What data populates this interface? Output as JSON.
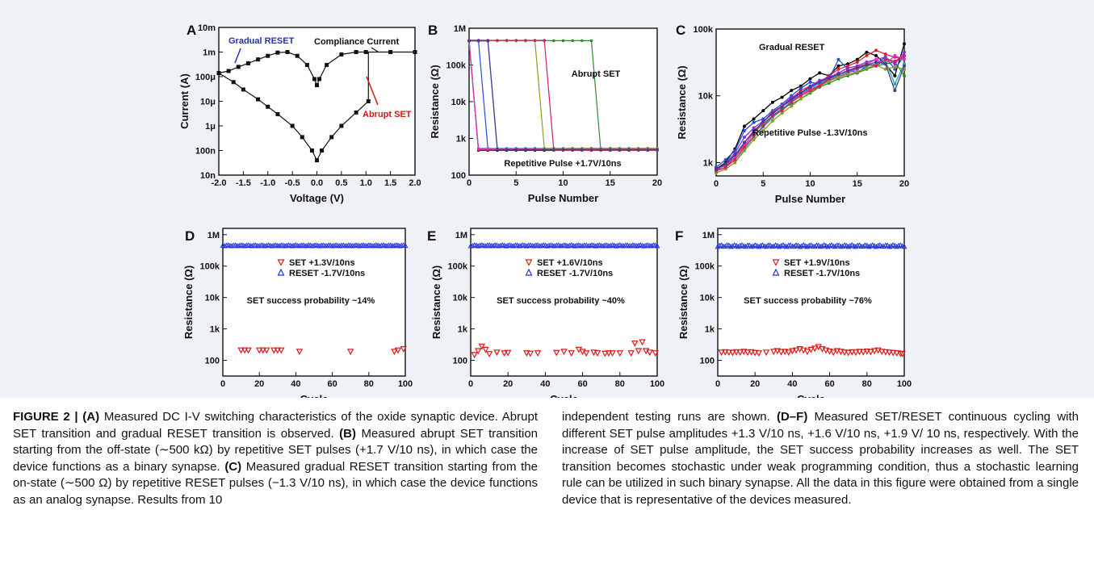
{
  "panels": [
    {
      "letter": "A",
      "type": "scatter",
      "xlabel": "Voltage (V)",
      "ylabel": "Current (A)",
      "xlim": [
        -2.0,
        2.0
      ],
      "xticks": [
        "-2.0",
        "-1.5",
        "-1.0",
        "-0.5",
        "0.0",
        "0.5",
        "1.0",
        "1.5",
        "2.0"
      ],
      "ylog": true,
      "ylim_exp": [
        -8,
        -2
      ],
      "yticks": [
        "10n",
        "100n",
        "1μ",
        "10μ",
        "100μ",
        "1m",
        "10m"
      ],
      "annotations": {
        "gradual": "Gradual RESET",
        "compliance": "Compliance Current",
        "abrupt": "Abrupt SET"
      },
      "curves": {
        "upper": [
          [
            -2.0,
            0.00014
          ],
          [
            -1.8,
            0.00017
          ],
          [
            -1.6,
            0.00025
          ],
          [
            -1.4,
            0.00035
          ],
          [
            -1.2,
            0.0005
          ],
          [
            -1.0,
            0.0007
          ],
          [
            -0.8,
            0.00095
          ],
          [
            -0.6,
            0.001
          ],
          [
            -0.4,
            0.0007
          ],
          [
            -0.2,
            0.0003
          ],
          [
            -0.05,
            8e-05
          ],
          [
            0.0,
            4.5e-05
          ],
          [
            0.05,
            8e-05
          ],
          [
            0.2,
            0.0003
          ],
          [
            0.5,
            0.0008
          ],
          [
            0.8,
            0.001
          ],
          [
            1.0,
            0.001
          ],
          [
            1.5,
            0.001
          ],
          [
            2.0,
            0.001
          ]
        ],
        "lower": [
          [
            -2.0,
            0.00014
          ],
          [
            -1.7,
            6e-05
          ],
          [
            -1.5,
            3e-05
          ],
          [
            -1.2,
            1.2e-05
          ],
          [
            -1.0,
            6e-06
          ],
          [
            -0.8,
            3e-06
          ],
          [
            -0.5,
            1e-06
          ],
          [
            -0.3,
            3.5e-07
          ],
          [
            -0.1,
            1e-07
          ],
          [
            0.0,
            4e-08
          ],
          [
            0.1,
            1e-07
          ],
          [
            0.3,
            3.5e-07
          ],
          [
            0.5,
            1e-06
          ],
          [
            0.8,
            3.5e-06
          ],
          [
            1.05,
            1e-05
          ]
        ]
      }
    },
    {
      "letter": "B",
      "type": "line",
      "xlabel": "Pulse Number",
      "ylabel": "Resistance (Ω)",
      "xlim": [
        0,
        20
      ],
      "xticks": [
        "0",
        "5",
        "10",
        "15",
        "20"
      ],
      "ylog": true,
      "ylim_exp": [
        2,
        6
      ],
      "yticks": [
        "100",
        "1k",
        "10k",
        "100k",
        "1M"
      ],
      "annotations": {
        "top": "Abrupt SET",
        "bottom": "Repetitive Pulse +1.7V/10ns"
      },
      "high": 450000,
      "low": 500,
      "series": [
        {
          "color": "#000000",
          "switch": 1
        },
        {
          "color": "#e8192c",
          "switch": 1
        },
        {
          "color": "#1f4fd8",
          "switch": 2
        },
        {
          "color": "#18b4b4",
          "switch": 1
        },
        {
          "color": "#2e8b2e",
          "switch": 14
        },
        {
          "color": "#8a2be2",
          "switch": 3
        },
        {
          "color": "#e030c8",
          "switch": 1
        },
        {
          "color": "#8e9b1a",
          "switch": 8
        },
        {
          "color": "#d02060",
          "switch": 9
        },
        {
          "color": "#404090",
          "switch": 3
        }
      ]
    },
    {
      "letter": "C",
      "type": "line",
      "xlabel": "Pulse Number",
      "ylabel": "Resistance (Ω)",
      "xlim": [
        0,
        20
      ],
      "xticks": [
        "0",
        "5",
        "10",
        "15",
        "20"
      ],
      "ylog": true,
      "ylim_exp": [
        2.8,
        5
      ],
      "yticks": [
        "1k",
        "10k",
        "100k"
      ],
      "annotations": {
        "top": "Gradual RESET",
        "bottom": "Repetitive Pulse -1.3V/10ns"
      },
      "series": [
        {
          "color": "#000000",
          "values": [
            800,
            1000,
            1600,
            3500,
            4500,
            6000,
            8000,
            9500,
            12000,
            14000,
            18000,
            22000,
            20000,
            28000,
            30000,
            35000,
            45000,
            40000,
            30000,
            20000,
            60000
          ]
        },
        {
          "color": "#e8192c",
          "values": [
            750,
            850,
            1200,
            2000,
            3000,
            4000,
            5500,
            7000,
            9000,
            12000,
            14000,
            16000,
            20000,
            25000,
            28000,
            32000,
            40000,
            48000,
            42000,
            38000,
            35000
          ]
        },
        {
          "color": "#1f4fd8",
          "values": [
            850,
            1100,
            1500,
            3000,
            4000,
            4500,
            6000,
            7500,
            10000,
            13000,
            16000,
            15000,
            18000,
            35000,
            25000,
            22000,
            28000,
            30000,
            38000,
            25000,
            40000
          ]
        },
        {
          "color": "#18b4b4",
          "values": [
            700,
            800,
            1000,
            1600,
            2400,
            3400,
            4700,
            6200,
            8300,
            10500,
            13000,
            15500,
            17500,
            20000,
            22500,
            25000,
            28000,
            30000,
            33000,
            15000,
            30000
          ]
        },
        {
          "color": "#2e8b2e",
          "values": [
            800,
            900,
            1300,
            1800,
            2800,
            3800,
            5000,
            6500,
            7500,
            9000,
            11000,
            13500,
            15500,
            18000,
            20000,
            22000,
            25000,
            28000,
            30000,
            32000,
            20000
          ]
        },
        {
          "color": "#8a2be2",
          "values": [
            750,
            950,
            1400,
            2400,
            3300,
            4200,
            5300,
            7000,
            9500,
            11000,
            14000,
            17000,
            19000,
            22000,
            26000,
            28000,
            32000,
            35000,
            38000,
            30000,
            45000
          ]
        },
        {
          "color": "#e030c8",
          "values": [
            800,
            900,
            1200,
            1800,
            2800,
            4000,
            5800,
            7000,
            8500,
            10500,
            12500,
            14500,
            17000,
            19500,
            22000,
            25000,
            30000,
            35000,
            30000,
            40000,
            35000
          ]
        },
        {
          "color": "#8e9b1a",
          "values": [
            700,
            800,
            1000,
            1500,
            2200,
            3000,
            4200,
            5500,
            7000,
            9000,
            11500,
            14000,
            16500,
            19000,
            21000,
            23000,
            26000,
            29000,
            25000,
            27000,
            25000
          ]
        },
        {
          "color": "#d02060",
          "values": [
            750,
            850,
            1100,
            1700,
            2500,
            3500,
            5000,
            6000,
            8000,
            10000,
            12000,
            14000,
            18000,
            21000,
            24000,
            27000,
            30000,
            28000,
            35000,
            33000,
            40000
          ]
        },
        {
          "color": "#404090",
          "values": [
            800,
            950,
            1300,
            2000,
            2900,
            4100,
            5600,
            6800,
            8800,
            11000,
            13500,
            16000,
            18500,
            21000,
            23500,
            26000,
            29000,
            32000,
            30000,
            12000,
            28000
          ]
        }
      ]
    },
    {
      "letter": "D",
      "type": "scatter",
      "xlabel": "Cycle",
      "ylabel": "Resistance (Ω)",
      "xlim": [
        0,
        100
      ],
      "xticks": [
        "0",
        "20",
        "40",
        "60",
        "80",
        "100"
      ],
      "ylog": true,
      "ylim_exp": [
        1.5,
        6.2
      ],
      "yticks": [
        "100",
        "1k",
        "10k",
        "100k",
        "1M"
      ],
      "legend": {
        "set": "SET +1.3V/10ns",
        "reset": "RESET -1.7V/10ns"
      },
      "note": "SET success probability ~14%",
      "reset_value": 450000,
      "set_points": [
        [
          10,
          210
        ],
        [
          12,
          210
        ],
        [
          14,
          210
        ],
        [
          20,
          210
        ],
        [
          22,
          210
        ],
        [
          24,
          210
        ],
        [
          28,
          210
        ],
        [
          30,
          210
        ],
        [
          32,
          210
        ],
        [
          42,
          190
        ],
        [
          70,
          190
        ],
        [
          94,
          190
        ],
        [
          96,
          210
        ],
        [
          99,
          230
        ]
      ],
      "reset_jitter": 0.03
    },
    {
      "letter": "E",
      "type": "scatter",
      "xlabel": "Cycle",
      "ylabel": "Resistance (Ω)",
      "xlim": [
        0,
        100
      ],
      "xticks": [
        "0",
        "20",
        "40",
        "60",
        "80",
        "100"
      ],
      "ylog": true,
      "ylim_exp": [
        1.5,
        6.2
      ],
      "yticks": [
        "100",
        "1k",
        "10k",
        "100k",
        "1M"
      ],
      "legend": {
        "set": "SET +1.6V/10ns",
        "reset": "RESET -1.7V/10ns"
      },
      "note": "SET success probability ~40%",
      "reset_value": 450000,
      "set_points": [
        [
          2,
          150
        ],
        [
          4,
          200
        ],
        [
          6,
          280
        ],
        [
          8,
          220
        ],
        [
          10,
          160
        ],
        [
          14,
          180
        ],
        [
          18,
          170
        ],
        [
          20,
          175
        ],
        [
          30,
          170
        ],
        [
          32,
          165
        ],
        [
          36,
          170
        ],
        [
          46,
          175
        ],
        [
          50,
          190
        ],
        [
          54,
          170
        ],
        [
          58,
          220
        ],
        [
          60,
          190
        ],
        [
          62,
          170
        ],
        [
          66,
          180
        ],
        [
          68,
          170
        ],
        [
          72,
          165
        ],
        [
          74,
          170
        ],
        [
          76,
          170
        ],
        [
          80,
          170
        ],
        [
          86,
          170
        ],
        [
          88,
          350
        ],
        [
          90,
          200
        ],
        [
          92,
          380
        ],
        [
          94,
          200
        ],
        [
          96,
          180
        ],
        [
          99,
          170
        ]
      ],
      "reset_jitter": 0.035
    },
    {
      "letter": "F",
      "type": "scatter",
      "xlabel": "Cycle",
      "ylabel": "Resistance (Ω)",
      "xlim": [
        0,
        100
      ],
      "xticks": [
        "0",
        "20",
        "40",
        "60",
        "80",
        "100"
      ],
      "ylog": true,
      "ylim_exp": [
        1.5,
        6.2
      ],
      "yticks": [
        "100",
        "1k",
        "10k",
        "100k",
        "1M"
      ],
      "legend": {
        "set": "SET +1.9V/10ns",
        "reset": "RESET -1.7V/10ns"
      },
      "note": "SET success probability ~76%",
      "reset_value": 440000,
      "set_points": [
        [
          2,
          180
        ],
        [
          4,
          185
        ],
        [
          6,
          180
        ],
        [
          8,
          175
        ],
        [
          10,
          185
        ],
        [
          12,
          180
        ],
        [
          14,
          190
        ],
        [
          16,
          180
        ],
        [
          18,
          185
        ],
        [
          20,
          175
        ],
        [
          22,
          170
        ],
        [
          26,
          180
        ],
        [
          30,
          190
        ],
        [
          32,
          200
        ],
        [
          34,
          185
        ],
        [
          36,
          190
        ],
        [
          38,
          180
        ],
        [
          40,
          200
        ],
        [
          42,
          210
        ],
        [
          44,
          230
        ],
        [
          46,
          210
        ],
        [
          48,
          190
        ],
        [
          50,
          220
        ],
        [
          52,
          240
        ],
        [
          54,
          270
        ],
        [
          56,
          230
        ],
        [
          58,
          210
        ],
        [
          60,
          195
        ],
        [
          62,
          180
        ],
        [
          64,
          200
        ],
        [
          66,
          190
        ],
        [
          68,
          180
        ],
        [
          70,
          175
        ],
        [
          72,
          185
        ],
        [
          74,
          180
        ],
        [
          76,
          190
        ],
        [
          78,
          185
        ],
        [
          80,
          195
        ],
        [
          82,
          185
        ],
        [
          84,
          200
        ],
        [
          86,
          210
        ],
        [
          88,
          190
        ],
        [
          90,
          185
        ],
        [
          92,
          180
        ],
        [
          94,
          175
        ],
        [
          96,
          170
        ],
        [
          98,
          165
        ],
        [
          99,
          160
        ]
      ],
      "reset_jitter": 0.06
    }
  ],
  "caption": {
    "left": {
      "fig_label": "FIGURE 2 | ",
      "p1_bold": "(A)",
      "p1_text": " Measured DC I-V switching characteristics of the oxide synaptic device. Abrupt SET transition and gradual RESET transition is observed. ",
      "p2_bold": "(B)",
      "p2_text": " Measured abrupt SET transition starting from the off-state (∼500 kΩ) by repetitive SET pulses (+1.7 V/10 ns), in which case the device functions as a binary synapse. ",
      "p3_bold": "(C)",
      "p3_text": " Measured gradual RESET transition starting from the on-state (∼500 Ω) by repetitive RESET pulses (−1.3 V/10 ns), in which case the device functions as an analog synapse. Results from 10"
    },
    "right": {
      "p0_text": "independent testing runs are shown. ",
      "p4_bold": "(D–F)",
      "p4_text": " Measured SET/RESET continuous cycling with different SET pulse amplitudes +1.3 V/10 ns, +1.6 V/10 ns, +1.9 V/ 10 ns, respectively. With the increase of SET pulse amplitude, the SET success probability increases as well. The SET transition becomes stochastic under weak programming condition, thus a stochastic learning rule can be utilized in such binary synapse. All the data in this figure were obtained from a single device that is representative of the devices measured."
    }
  }
}
